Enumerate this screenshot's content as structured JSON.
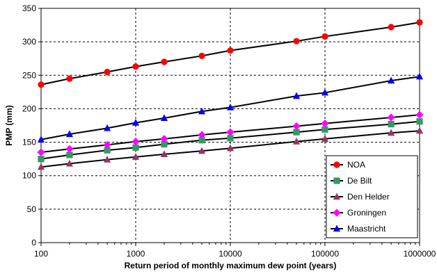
{
  "chart_data": {
    "type": "line",
    "title": "",
    "xlabel": "Return period of monthly maximum dew point (years)",
    "ylabel": "PMP (mm)",
    "xscale": "log",
    "xlim": [
      100,
      1000000
    ],
    "ylim": [
      0,
      350
    ],
    "x_ticks": [
      100,
      1000,
      10000,
      100000,
      1000000
    ],
    "x_tick_labels": [
      "100",
      "1000",
      "10000",
      "100000",
      "1000000"
    ],
    "y_ticks": [
      0,
      50,
      100,
      150,
      200,
      250,
      300,
      350
    ],
    "y_tick_labels": [
      "0",
      "50",
      "100",
      "150",
      "200",
      "250",
      "300",
      "350"
    ],
    "grid": {
      "x": true,
      "y": true,
      "style": "dashed"
    },
    "legend_position": "lower-right",
    "x": [
      100,
      200,
      500,
      1000,
      2000,
      5000,
      10000,
      50000,
      100000,
      500000,
      1000000
    ],
    "series": [
      {
        "name": "NOA",
        "color": "#ff0000",
        "marker": "circle",
        "values": [
          236,
          245,
          255,
          263,
          270,
          279,
          287,
          301,
          308,
          322,
          329
        ]
      },
      {
        "name": "De Bilt",
        "color": "#339966",
        "marker": "square",
        "values": [
          125,
          131,
          138,
          142,
          147,
          153,
          156,
          165,
          169,
          177,
          181
        ]
      },
      {
        "name": "Den Helder",
        "color": "#993366",
        "marker": "triangle",
        "values": [
          113,
          118,
          124,
          128,
          132,
          137,
          141,
          151,
          155,
          164,
          167
        ]
      },
      {
        "name": "Groningen",
        "color": "#ff00ff",
        "marker": "diamond",
        "values": [
          135,
          140,
          146,
          151,
          155,
          161,
          165,
          174,
          178,
          187,
          191
        ]
      },
      {
        "name": "Maastricht",
        "color": "#0000ff",
        "marker": "triangle",
        "values": [
          154,
          162,
          171,
          179,
          186,
          196,
          202,
          219,
          224,
          242,
          248
        ]
      }
    ]
  }
}
